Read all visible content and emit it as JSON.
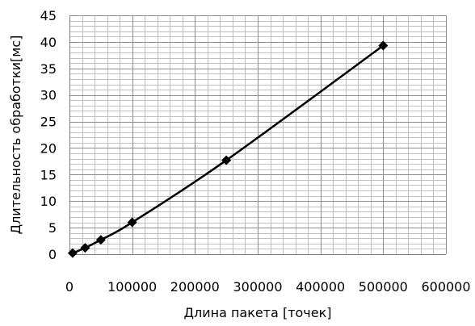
{
  "chart_data": {
    "type": "scatter",
    "title": "",
    "xlabel": "Длина пакета [точек]",
    "ylabel": "Длительность обработки[мс]",
    "xlim": [
      0,
      600000
    ],
    "ylim": [
      0,
      45
    ],
    "x_ticks": [
      0,
      100000,
      200000,
      300000,
      400000,
      500000,
      600000
    ],
    "x_tick_labels": [
      "0",
      "100000",
      "200000",
      "300000",
      "400000",
      "500000",
      "600000"
    ],
    "y_ticks": [
      0,
      5,
      10,
      15,
      20,
      25,
      30,
      35,
      40,
      45
    ],
    "y_tick_labels": [
      "0",
      "5",
      "10",
      "15",
      "20",
      "25",
      "30",
      "35",
      "40",
      "45"
    ],
    "x_minor_step": 20000,
    "y_minor_step": 1,
    "grid": true,
    "legend": "none",
    "marker": "diamond",
    "line": "smooth",
    "line_color": "#000000",
    "grid_color": "#bfbfbf",
    "series": [
      {
        "x": [
          5000,
          25000,
          50000,
          100000,
          250000,
          500000
        ],
        "y": [
          0.2,
          1.2,
          2.7,
          6.0,
          17.7,
          39.3
        ]
      }
    ]
  }
}
